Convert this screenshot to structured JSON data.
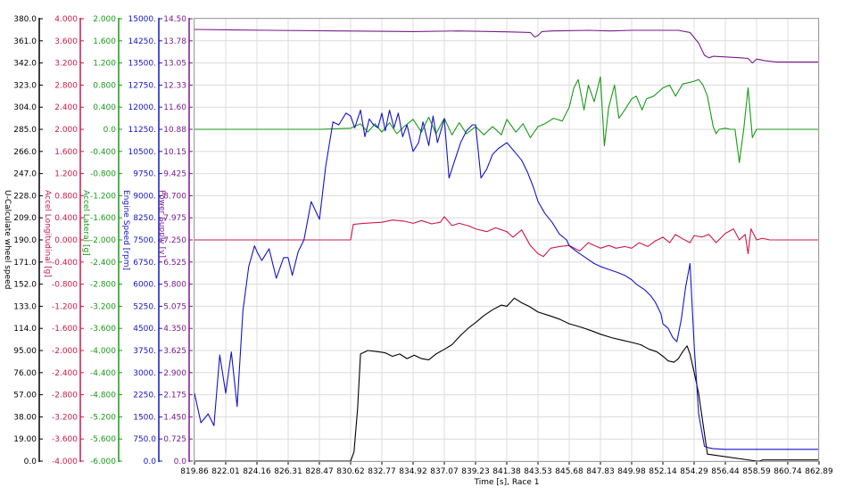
{
  "chart_data": {
    "type": "line",
    "xlabel": "Time [s], Race 1",
    "xlim": [
      819.86,
      862.89
    ],
    "x_ticks": [
      "819.86",
      "822.01",
      "824.16",
      "826.31",
      "828.47",
      "830.62",
      "832.77",
      "834.92",
      "837.07",
      "839.23",
      "841.38",
      "843.53",
      "845.68",
      "847.83",
      "849.98",
      "852.14",
      "854.29",
      "856.44",
      "858.59",
      "860.74",
      "862.89"
    ],
    "grid": true,
    "axes": [
      {
        "id": "speed",
        "label": "U-Calculate wheel speed",
        "color": "#000000",
        "min": 0,
        "max": 380,
        "ticks": [
          "0.0",
          "19.00",
          "38.00",
          "57.00",
          "76.00",
          "95.00",
          "114.0",
          "133.0",
          "152.0",
          "171.0",
          "190.0",
          "209.0",
          "228.0",
          "247.0",
          "266.0",
          "285.0",
          "304.0",
          "323.0",
          "342.0",
          "361.0",
          "380.0"
        ]
      },
      {
        "id": "long",
        "label": "Accel Longitudinal [g]",
        "color": "#cc1a4a",
        "min": -4,
        "max": 4,
        "ticks": [
          "-4.000",
          "-3.600",
          "-3.200",
          "-2.800",
          "-2.400",
          "-2.000",
          "-1.600",
          "-1.200",
          "-0.800",
          "-0.400",
          "0.000",
          "0.400",
          "0.800",
          "1.200",
          "1.600",
          "2.000",
          "2.400",
          "2.800",
          "3.200",
          "3.600",
          "4.000"
        ]
      },
      {
        "id": "lat",
        "label": "Accel Lateral [g]",
        "color": "#179a17",
        "min": -6,
        "max": 2,
        "ticks": [
          "-6.000",
          "-5.600",
          "-5.200",
          "-4.800",
          "-4.400",
          "-4.000",
          "-3.600",
          "-3.200",
          "-2.800",
          "-2.400",
          "-2.000",
          "-1.600",
          "-1.200",
          "-0.800",
          "-0.400",
          "0.0",
          "0.400",
          "0.800",
          "1.200",
          "1.600",
          "2.000"
        ]
      },
      {
        "id": "rpm",
        "label": "Engine Speed [rpm]",
        "color": "#1515c8",
        "min": 0,
        "max": 15000,
        "ticks": [
          "0.0",
          "750.0",
          "1500.",
          "2250.",
          "3000.",
          "3750.",
          "4500.",
          "5250.",
          "6000.",
          "6750.",
          "7500.",
          "8250.",
          "9000.",
          "9750.",
          "10500.",
          "11250.",
          "12000.",
          "12750.",
          "13500.",
          "14250.",
          "15000."
        ]
      },
      {
        "id": "volt",
        "label": "Power Supply [v]",
        "color": "#7a1a8a",
        "min": 0,
        "max": 14.5,
        "ticks": [
          "0.0",
          "0.725",
          "1.450",
          "2.175",
          "2.900",
          "3.625",
          "4.350",
          "5.075",
          "5.800",
          "6.525",
          "7.250",
          "7.975",
          "8.700",
          "9.425",
          "10.15",
          "10.88",
          "11.60",
          "12.33",
          "13.05",
          "13.78",
          "14.50"
        ]
      }
    ],
    "series": [
      {
        "name": "U-Calculate wheel speed",
        "axis": "speed",
        "color": "#000000",
        "x": [
          819.86,
          830.5,
          830.62,
          830.85,
          831.1,
          831.3,
          831.8,
          832.5,
          833.0,
          833.5,
          834.0,
          834.5,
          835.0,
          835.5,
          836.0,
          836.5,
          837.07,
          837.6,
          838.2,
          838.8,
          839.23,
          839.8,
          840.4,
          841.0,
          841.38,
          841.9,
          842.4,
          842.9,
          843.53,
          844.3,
          845.0,
          845.68,
          846.5,
          847.2,
          847.83,
          848.6,
          849.3,
          849.98,
          850.6,
          851.2,
          851.7,
          852.14,
          852.5,
          852.9,
          853.2,
          853.5,
          853.8,
          854.0,
          854.29,
          854.6,
          854.9,
          855.2,
          858.59,
          858.8,
          859.0,
          862.89
        ],
        "y": [
          0,
          0,
          0,
          8,
          45,
          92,
          95,
          94,
          93,
          90,
          92,
          88,
          91,
          88,
          87,
          92,
          96,
          100,
          108,
          115,
          119,
          125,
          130,
          134,
          133,
          140,
          136,
          133,
          128,
          125,
          122,
          118,
          115,
          112,
          109,
          106,
          104,
          102,
          100,
          96,
          94,
          90,
          86,
          85,
          88,
          94,
          99,
          92,
          76,
          58,
          32,
          6,
          0,
          0,
          1,
          1
        ]
      },
      {
        "name": "Accel Longitudinal [g]",
        "axis": "long",
        "color": "#cc1a4a",
        "x": [
          819.86,
          830.5,
          830.62,
          830.8,
          831.5,
          832.77,
          833.5,
          834.3,
          834.92,
          835.5,
          836.2,
          836.8,
          837.07,
          837.6,
          838.1,
          838.8,
          839.23,
          840.0,
          840.6,
          841.38,
          841.8,
          842.4,
          843.0,
          843.53,
          843.9,
          844.4,
          845.0,
          845.68,
          846.4,
          847.0,
          847.83,
          848.4,
          848.9,
          849.5,
          849.98,
          850.5,
          851.1,
          851.6,
          852.14,
          852.6,
          853.0,
          853.5,
          854.0,
          854.29,
          854.8,
          855.3,
          855.8,
          856.44,
          857.0,
          857.4,
          857.8,
          858.0,
          858.2,
          858.59,
          859.0,
          859.5,
          860.74,
          862.89
        ],
        "y": [
          0,
          0,
          0,
          0.28,
          0.3,
          0.32,
          0.36,
          0.34,
          0.3,
          0.35,
          0.29,
          0.32,
          0.42,
          0.26,
          0.3,
          0.25,
          0.2,
          0.15,
          0.22,
          0.15,
          0.05,
          0.18,
          -0.1,
          -0.25,
          -0.3,
          -0.15,
          -0.12,
          -0.1,
          -0.2,
          -0.05,
          -0.15,
          -0.1,
          -0.15,
          -0.12,
          -0.15,
          -0.05,
          -0.12,
          -0.02,
          0.05,
          -0.05,
          0.1,
          0.02,
          -0.05,
          0.08,
          0.05,
          0.1,
          -0.05,
          0.12,
          0.2,
          0.0,
          0.1,
          -0.25,
          0.2,
          0.0,
          0.03,
          0.0,
          0.0,
          0.0
        ]
      },
      {
        "name": "Accel Lateral [g]",
        "axis": "lat",
        "color": "#179a17",
        "x": [
          819.86,
          828.5,
          830.62,
          831.3,
          831.8,
          832.3,
          832.77,
          833.3,
          833.8,
          834.3,
          834.92,
          835.5,
          836.0,
          836.5,
          837.07,
          837.6,
          838.1,
          838.6,
          839.23,
          839.8,
          840.4,
          841.0,
          841.38,
          842.0,
          842.5,
          843.0,
          843.53,
          844.0,
          844.6,
          845.2,
          845.68,
          846.0,
          846.3,
          846.7,
          847.0,
          847.4,
          847.83,
          848.1,
          848.4,
          848.8,
          849.1,
          849.5,
          849.98,
          850.3,
          850.7,
          851.0,
          851.5,
          852.14,
          852.6,
          853.0,
          853.5,
          854.0,
          854.29,
          854.6,
          854.9,
          855.2,
          855.6,
          855.8,
          856.0,
          856.44,
          856.8,
          857.1,
          857.4,
          857.7,
          858.0,
          858.3,
          858.59,
          859.0,
          860.74,
          862.89
        ],
        "y": [
          0,
          0,
          0.02,
          0.1,
          -0.05,
          0.1,
          -0.05,
          0.12,
          -0.08,
          0.05,
          0.18,
          -0.05,
          0.22,
          -0.08,
          0.2,
          -0.1,
          0.12,
          -0.08,
          0.05,
          -0.1,
          0.05,
          -0.1,
          0.18,
          -0.05,
          0.1,
          -0.15,
          0.05,
          0.1,
          0.2,
          0.15,
          0.4,
          0.75,
          0.9,
          0.35,
          0.8,
          0.5,
          0.95,
          -0.3,
          0.4,
          0.8,
          0.2,
          0.35,
          0.55,
          0.6,
          0.35,
          0.55,
          0.6,
          0.75,
          0.8,
          0.6,
          0.82,
          0.85,
          0.87,
          0.9,
          0.8,
          0.6,
          0.05,
          -0.08,
          0.0,
          0.02,
          0.0,
          0.0,
          -0.6,
          0.0,
          0.75,
          -0.15,
          0.0,
          0.0,
          0.0,
          0.0
        ]
      },
      {
        "name": "Engine Speed [rpm]",
        "axis": "rpm",
        "color": "#1515c8",
        "x": [
          819.86,
          820.3,
          820.8,
          821.2,
          821.6,
          822.01,
          822.4,
          822.8,
          823.2,
          823.6,
          824.0,
          824.16,
          824.5,
          825.0,
          825.5,
          826.0,
          826.31,
          826.6,
          827.0,
          827.4,
          827.9,
          828.47,
          828.9,
          829.4,
          829.8,
          830.3,
          830.62,
          830.9,
          831.3,
          831.6,
          831.9,
          832.2,
          832.5,
          832.77,
          833.0,
          833.3,
          833.6,
          833.9,
          834.2,
          834.5,
          834.92,
          835.3,
          835.6,
          836.0,
          836.3,
          836.6,
          837.07,
          837.4,
          837.8,
          838.2,
          838.6,
          839.0,
          839.23,
          839.6,
          840.0,
          840.4,
          840.8,
          841.38,
          841.9,
          842.4,
          842.8,
          843.2,
          843.53,
          844.0,
          844.5,
          845.0,
          845.5,
          845.68,
          846.2,
          846.8,
          847.4,
          847.83,
          848.4,
          849.0,
          849.5,
          849.98,
          850.3,
          850.6,
          850.9,
          851.3,
          851.6,
          852.0,
          852.14,
          852.5,
          852.8,
          853.1,
          853.4,
          853.7,
          854.0,
          854.29,
          854.6,
          855.0,
          855.3,
          855.6,
          856.44,
          858.59,
          860.74,
          862.89
        ],
        "y": [
          2300,
          1300,
          1600,
          1200,
          3600,
          2300,
          3700,
          1850,
          5100,
          6600,
          7300,
          7100,
          6800,
          7200,
          6200,
          6900,
          6900,
          6300,
          7100,
          7500,
          8800,
          8200,
          10000,
          11500,
          11400,
          11800,
          11700,
          11300,
          11900,
          11000,
          11600,
          11400,
          11300,
          11800,
          11200,
          11900,
          11300,
          11800,
          11000,
          11400,
          10500,
          10800,
          11500,
          10700,
          11700,
          10800,
          11600,
          9600,
          10200,
          10800,
          11200,
          11400,
          11400,
          9600,
          9900,
          10400,
          10600,
          10800,
          10500,
          10200,
          9800,
          9300,
          8800,
          8400,
          8100,
          7700,
          7500,
          7300,
          7100,
          6900,
          6700,
          6600,
          6500,
          6400,
          6300,
          6150,
          6000,
          5900,
          5800,
          5600,
          5400,
          5000,
          4650,
          4500,
          4200,
          4050,
          4800,
          5900,
          6700,
          3900,
          1600,
          500,
          450,
          420,
          400,
          400,
          400,
          400
        ]
      },
      {
        "name": "Power Supply [v]",
        "axis": "volt",
        "color": "#7a1a8a",
        "x": [
          819.86,
          825.0,
          830.0,
          835.0,
          838.0,
          841.38,
          843.0,
          843.3,
          843.53,
          843.8,
          844.5,
          847.0,
          848.5,
          849.98,
          852.14,
          853.2,
          854.0,
          854.6,
          855.0,
          855.3,
          855.6,
          856.44,
          857.5,
          858.0,
          858.3,
          858.6,
          859.2,
          860.0,
          862.89
        ],
        "y": [
          14.15,
          14.12,
          14.1,
          14.08,
          14.1,
          14.07,
          14.05,
          13.9,
          13.95,
          14.08,
          14.1,
          14.12,
          14.1,
          14.12,
          14.12,
          14.12,
          14.05,
          13.7,
          13.3,
          13.22,
          13.27,
          13.25,
          13.22,
          13.2,
          13.05,
          13.18,
          13.12,
          13.08,
          13.08
        ]
      }
    ]
  }
}
